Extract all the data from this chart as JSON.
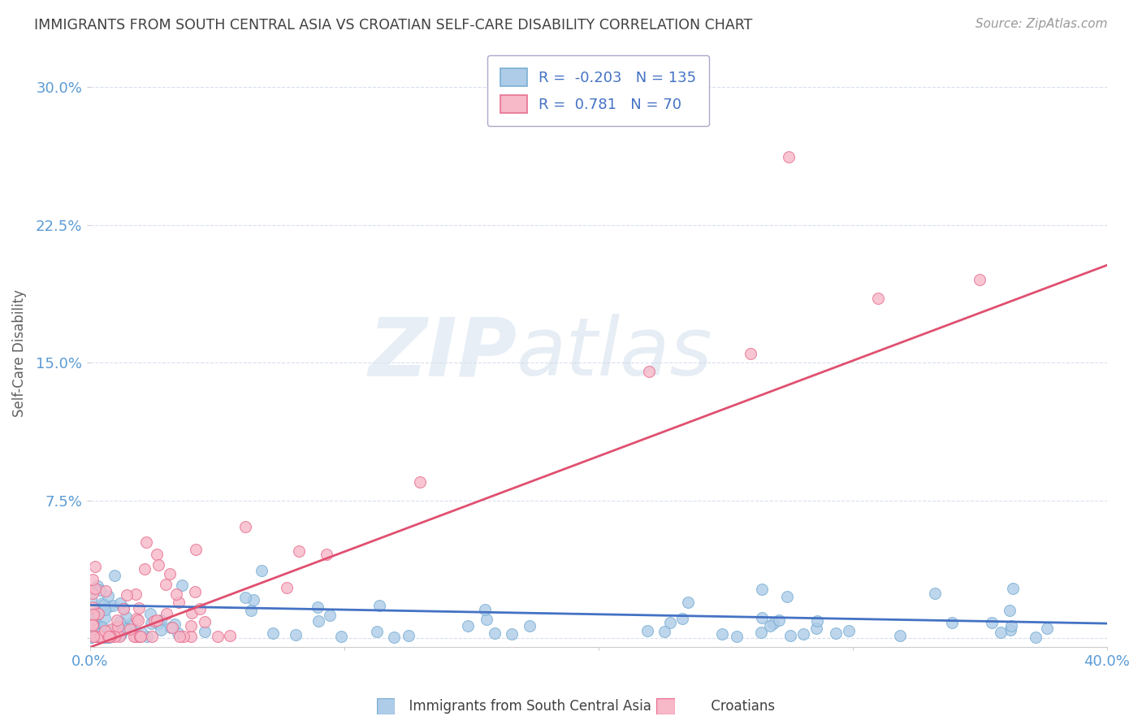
{
  "title": "IMMIGRANTS FROM SOUTH CENTRAL ASIA VS CROATIAN SELF-CARE DISABILITY CORRELATION CHART",
  "source": "Source: ZipAtlas.com",
  "ylabel": "Self-Care Disability",
  "xlim": [
    0.0,
    0.4
  ],
  "ylim": [
    -0.005,
    0.315
  ],
  "yticks": [
    0.0,
    0.075,
    0.15,
    0.225,
    0.3
  ],
  "ytick_labels": [
    "",
    "7.5%",
    "15.0%",
    "22.5%",
    "30.0%"
  ],
  "xticks": [
    0.0,
    0.1,
    0.2,
    0.3,
    0.4
  ],
  "xtick_labels": [
    "0.0%",
    "",
    "",
    "",
    "40.0%"
  ],
  "series1_color": "#aecce8",
  "series1_edge": "#7aafd4",
  "series2_color": "#f7b8c8",
  "series2_edge": "#e87090",
  "trend1_color": "#4472c4",
  "trend2_color": "#e05070",
  "R1": -0.203,
  "N1": 135,
  "R2": 0.781,
  "N2": 70,
  "legend1": "Immigrants from South Central Asia",
  "legend2": "Croatians",
  "watermark_zip": "ZIP",
  "watermark_atlas": "atlas",
  "background_color": "#ffffff",
  "grid_color": "#d8dff0",
  "title_color": "#404040",
  "axis_color": "#5b9bd5",
  "trend1_intercept": 0.018,
  "trend1_slope": -0.025,
  "trend2_intercept": -0.005,
  "trend2_slope": 0.52
}
